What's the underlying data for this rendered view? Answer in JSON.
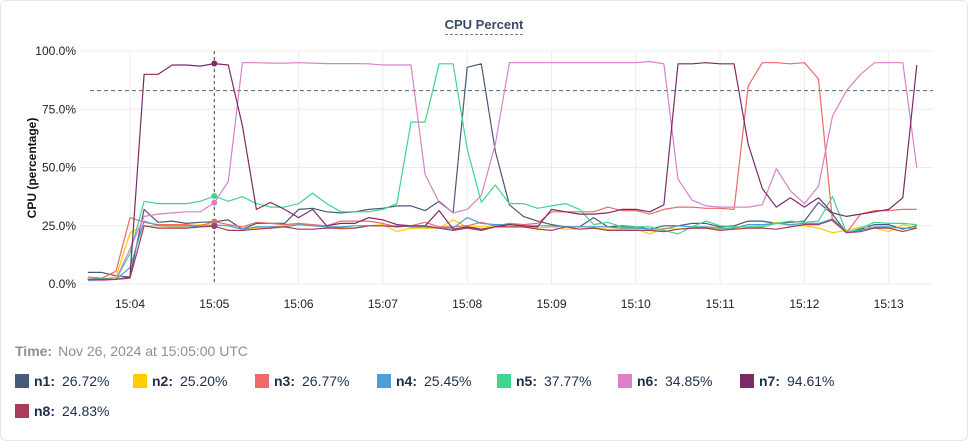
{
  "chart_data": {
    "type": "line",
    "title": "CPU Percent",
    "ylabel": "CPU (percentage)",
    "xlabel": "",
    "ylim": [
      0,
      100
    ],
    "yticks": [
      "0.0%",
      "25.0%",
      "50.0%",
      "75.0%",
      "100.0%"
    ],
    "ytick_values": [
      0,
      25,
      50,
      75,
      100
    ],
    "xticks": [
      "15:04",
      "15:05",
      "15:06",
      "15:07",
      "15:08",
      "15:09",
      "15:10",
      "15:11",
      "15:12",
      "15:13"
    ],
    "grid": true,
    "threshold": 83,
    "crosshair_time": "15:05:00",
    "x": [
      "15:03:30",
      "15:03:40",
      "15:03:50",
      "15:04:00",
      "15:04:10",
      "15:04:20",
      "15:04:30",
      "15:04:40",
      "15:04:50",
      "15:05:00",
      "15:05:10",
      "15:05:20",
      "15:05:30",
      "15:05:40",
      "15:05:50",
      "15:06:00",
      "15:06:10",
      "15:06:20",
      "15:06:30",
      "15:06:40",
      "15:06:50",
      "15:07:00",
      "15:07:10",
      "15:07:20",
      "15:07:30",
      "15:07:40",
      "15:07:50",
      "15:08:00",
      "15:08:10",
      "15:08:20",
      "15:08:30",
      "15:08:40",
      "15:08:50",
      "15:09:00",
      "15:09:10",
      "15:09:20",
      "15:09:30",
      "15:09:40",
      "15:09:50",
      "15:10:00",
      "15:10:10",
      "15:10:20",
      "15:10:30",
      "15:10:40",
      "15:10:50",
      "15:11:00",
      "15:11:10",
      "15:11:20",
      "15:11:30",
      "15:11:40",
      "15:11:50",
      "15:12:00",
      "15:12:10",
      "15:12:20",
      "15:12:30",
      "15:12:40",
      "15:12:50",
      "15:13:00",
      "15:13:10",
      "15:13:20"
    ],
    "series": [
      {
        "name": "n1",
        "color": "#475a78",
        "values": [
          5,
          5,
          3.5,
          3,
          32,
          26.5,
          27,
          26,
          26.5,
          26.72,
          27.5,
          23.5,
          26,
          26,
          26,
          32,
          32.5,
          31,
          30.5,
          31,
          32,
          32.5,
          33.5,
          33.5,
          31.5,
          35.5,
          30.5,
          93,
          94.5,
          57,
          34,
          29,
          27,
          25.5,
          24.5,
          24.5,
          28.5,
          24.5,
          25,
          24.5,
          23.5,
          25,
          25,
          26,
          26,
          24.5,
          25,
          27,
          27,
          26,
          26.5,
          27,
          35,
          30,
          22,
          23.5,
          25.5,
          25.5,
          23.5,
          25
        ]
      },
      {
        "name": "n2",
        "color": "#ffcc00",
        "values": [
          2,
          2,
          3,
          22,
          25,
          25,
          24.5,
          24.5,
          25.5,
          25.2,
          25,
          23.5,
          24,
          24.5,
          25,
          25.5,
          25.5,
          24.5,
          23.5,
          24,
          25,
          25.5,
          22.5,
          24,
          24,
          24,
          27.5,
          24.5,
          24.5,
          25,
          24.5,
          24.5,
          24,
          24.5,
          23.5,
          23.5,
          24,
          23.5,
          23.5,
          23.5,
          21.5,
          24,
          23.5,
          24,
          24,
          23.5,
          23.5,
          25.5,
          25,
          26.5,
          25,
          25,
          24,
          22,
          23,
          24.5,
          24,
          22.5,
          25.5,
          24
        ]
      },
      {
        "name": "n3",
        "color": "#f06868",
        "values": [
          3,
          2.5,
          5.5,
          28.5,
          26.5,
          25.5,
          25.5,
          25.5,
          25,
          26.77,
          25.5,
          24.5,
          26.5,
          26,
          25.5,
          26,
          25.5,
          25,
          27,
          27,
          27,
          26,
          24.5,
          25,
          26.5,
          24.5,
          24.5,
          25,
          26.5,
          25,
          26,
          25.5,
          26,
          31,
          31,
          31,
          31,
          33,
          31.5,
          31.5,
          30,
          32,
          33,
          33,
          32.5,
          32.5,
          32,
          85,
          95,
          95,
          94.5,
          95,
          88,
          27,
          22,
          30,
          31.5,
          31.5,
          32,
          32
        ]
      },
      {
        "name": "n4",
        "color": "#4b9fd5",
        "values": [
          1.5,
          1.5,
          2,
          7,
          27,
          25,
          25,
          25,
          24.5,
          25.45,
          25,
          23.5,
          24.5,
          24.5,
          24.5,
          25.5,
          25,
          24.5,
          24.5,
          25,
          25,
          25,
          25,
          24.5,
          24.5,
          24,
          24,
          28.5,
          26,
          25.5,
          25.5,
          25,
          25,
          25,
          24.5,
          24.5,
          24.5,
          24.5,
          24,
          24,
          23.5,
          23.5,
          25,
          24.5,
          24.5,
          24,
          24,
          25.5,
          25.5,
          26,
          25.5,
          26,
          26,
          28,
          22.5,
          23,
          24.5,
          24.5,
          24,
          24
        ]
      },
      {
        "name": "n5",
        "color": "#3dd68c",
        "values": [
          2,
          2.5,
          2,
          13,
          35.5,
          34.5,
          34.5,
          34.5,
          35.5,
          37.77,
          35.5,
          37.5,
          34.5,
          33,
          33,
          34.5,
          39,
          34.5,
          31,
          31,
          31,
          32,
          34.5,
          69.5,
          69.5,
          94.5,
          94.5,
          58,
          35,
          42.5,
          34.5,
          34.5,
          32.5,
          33.5,
          34.5,
          32,
          25.5,
          26.5,
          24.5,
          24.5,
          24.5,
          23,
          21.5,
          24.5,
          27,
          25,
          24.5,
          24.5,
          24.5,
          26,
          27,
          26.5,
          27,
          37.5,
          22,
          24,
          26.5,
          26,
          26,
          25.5
        ]
      },
      {
        "name": "n6",
        "color": "#d980c9",
        "values": [
          2,
          1.5,
          2,
          15,
          29,
          30,
          30.5,
          31,
          31,
          34.85,
          44,
          95,
          95,
          94.8,
          94.8,
          95,
          94.8,
          94.6,
          94.6,
          94.6,
          94.5,
          94,
          94,
          94,
          47,
          35,
          30.5,
          32,
          38,
          60,
          95,
          95,
          95,
          95,
          95,
          95,
          95,
          95,
          95,
          95,
          95.5,
          94.5,
          45,
          36,
          33.5,
          33,
          33,
          33,
          34,
          49.5,
          40,
          34.5,
          42,
          72,
          83,
          90,
          95,
          95,
          95,
          50
        ]
      },
      {
        "name": "n7",
        "color": "#7d2a68",
        "values": [
          2,
          2,
          2,
          3,
          90,
          90,
          94,
          94,
          93.5,
          94.61,
          94,
          68,
          32,
          35,
          32,
          28.5,
          32,
          25,
          26,
          26,
          28.5,
          27.5,
          25.5,
          25,
          25,
          31.5,
          23.5,
          24.5,
          23.5,
          24.5,
          25.5,
          25,
          24.5,
          32,
          31,
          30,
          30,
          30.5,
          32,
          32,
          31,
          34,
          94.5,
          94.5,
          95,
          94.5,
          94.5,
          60,
          41,
          33,
          37,
          33,
          37,
          30.5,
          29,
          30,
          31,
          32,
          37,
          94
        ]
      },
      {
        "name": "n8",
        "color": "#a63d5a",
        "values": [
          2,
          2,
          2,
          2.5,
          25,
          24,
          24,
          24,
          24.5,
          24.83,
          23,
          23,
          23.5,
          24,
          24.5,
          23.5,
          23.5,
          24,
          24,
          24,
          25,
          25,
          24.5,
          25,
          25,
          24,
          23,
          24,
          23,
          24.5,
          24.5,
          24.5,
          23.5,
          23,
          24.5,
          23.5,
          24,
          23,
          23,
          23,
          23,
          22.5,
          23.5,
          24,
          24,
          23,
          23.5,
          24,
          24,
          23.5,
          24.5,
          25.5,
          25.5,
          27.5,
          22,
          22.5,
          24,
          24,
          22.5,
          24
        ]
      }
    ]
  },
  "tooltip": {
    "time_label": "Time:",
    "time_value": "Nov 26, 2024 at 15:05:00 UTC",
    "items": [
      {
        "name": "n1:",
        "value": "26.72%",
        "color": "#475a78"
      },
      {
        "name": "n2:",
        "value": "25.20%",
        "color": "#ffcc00"
      },
      {
        "name": "n3:",
        "value": "26.77%",
        "color": "#f06868"
      },
      {
        "name": "n4:",
        "value": "25.45%",
        "color": "#4b9fd5"
      },
      {
        "name": "n5:",
        "value": "37.77%",
        "color": "#3dd68c"
      },
      {
        "name": "n6:",
        "value": "34.85%",
        "color": "#d980c9"
      },
      {
        "name": "n7:",
        "value": "94.61%",
        "color": "#7d2a68"
      },
      {
        "name": "n8:",
        "value": "24.83%",
        "color": "#a63d5a"
      }
    ]
  }
}
